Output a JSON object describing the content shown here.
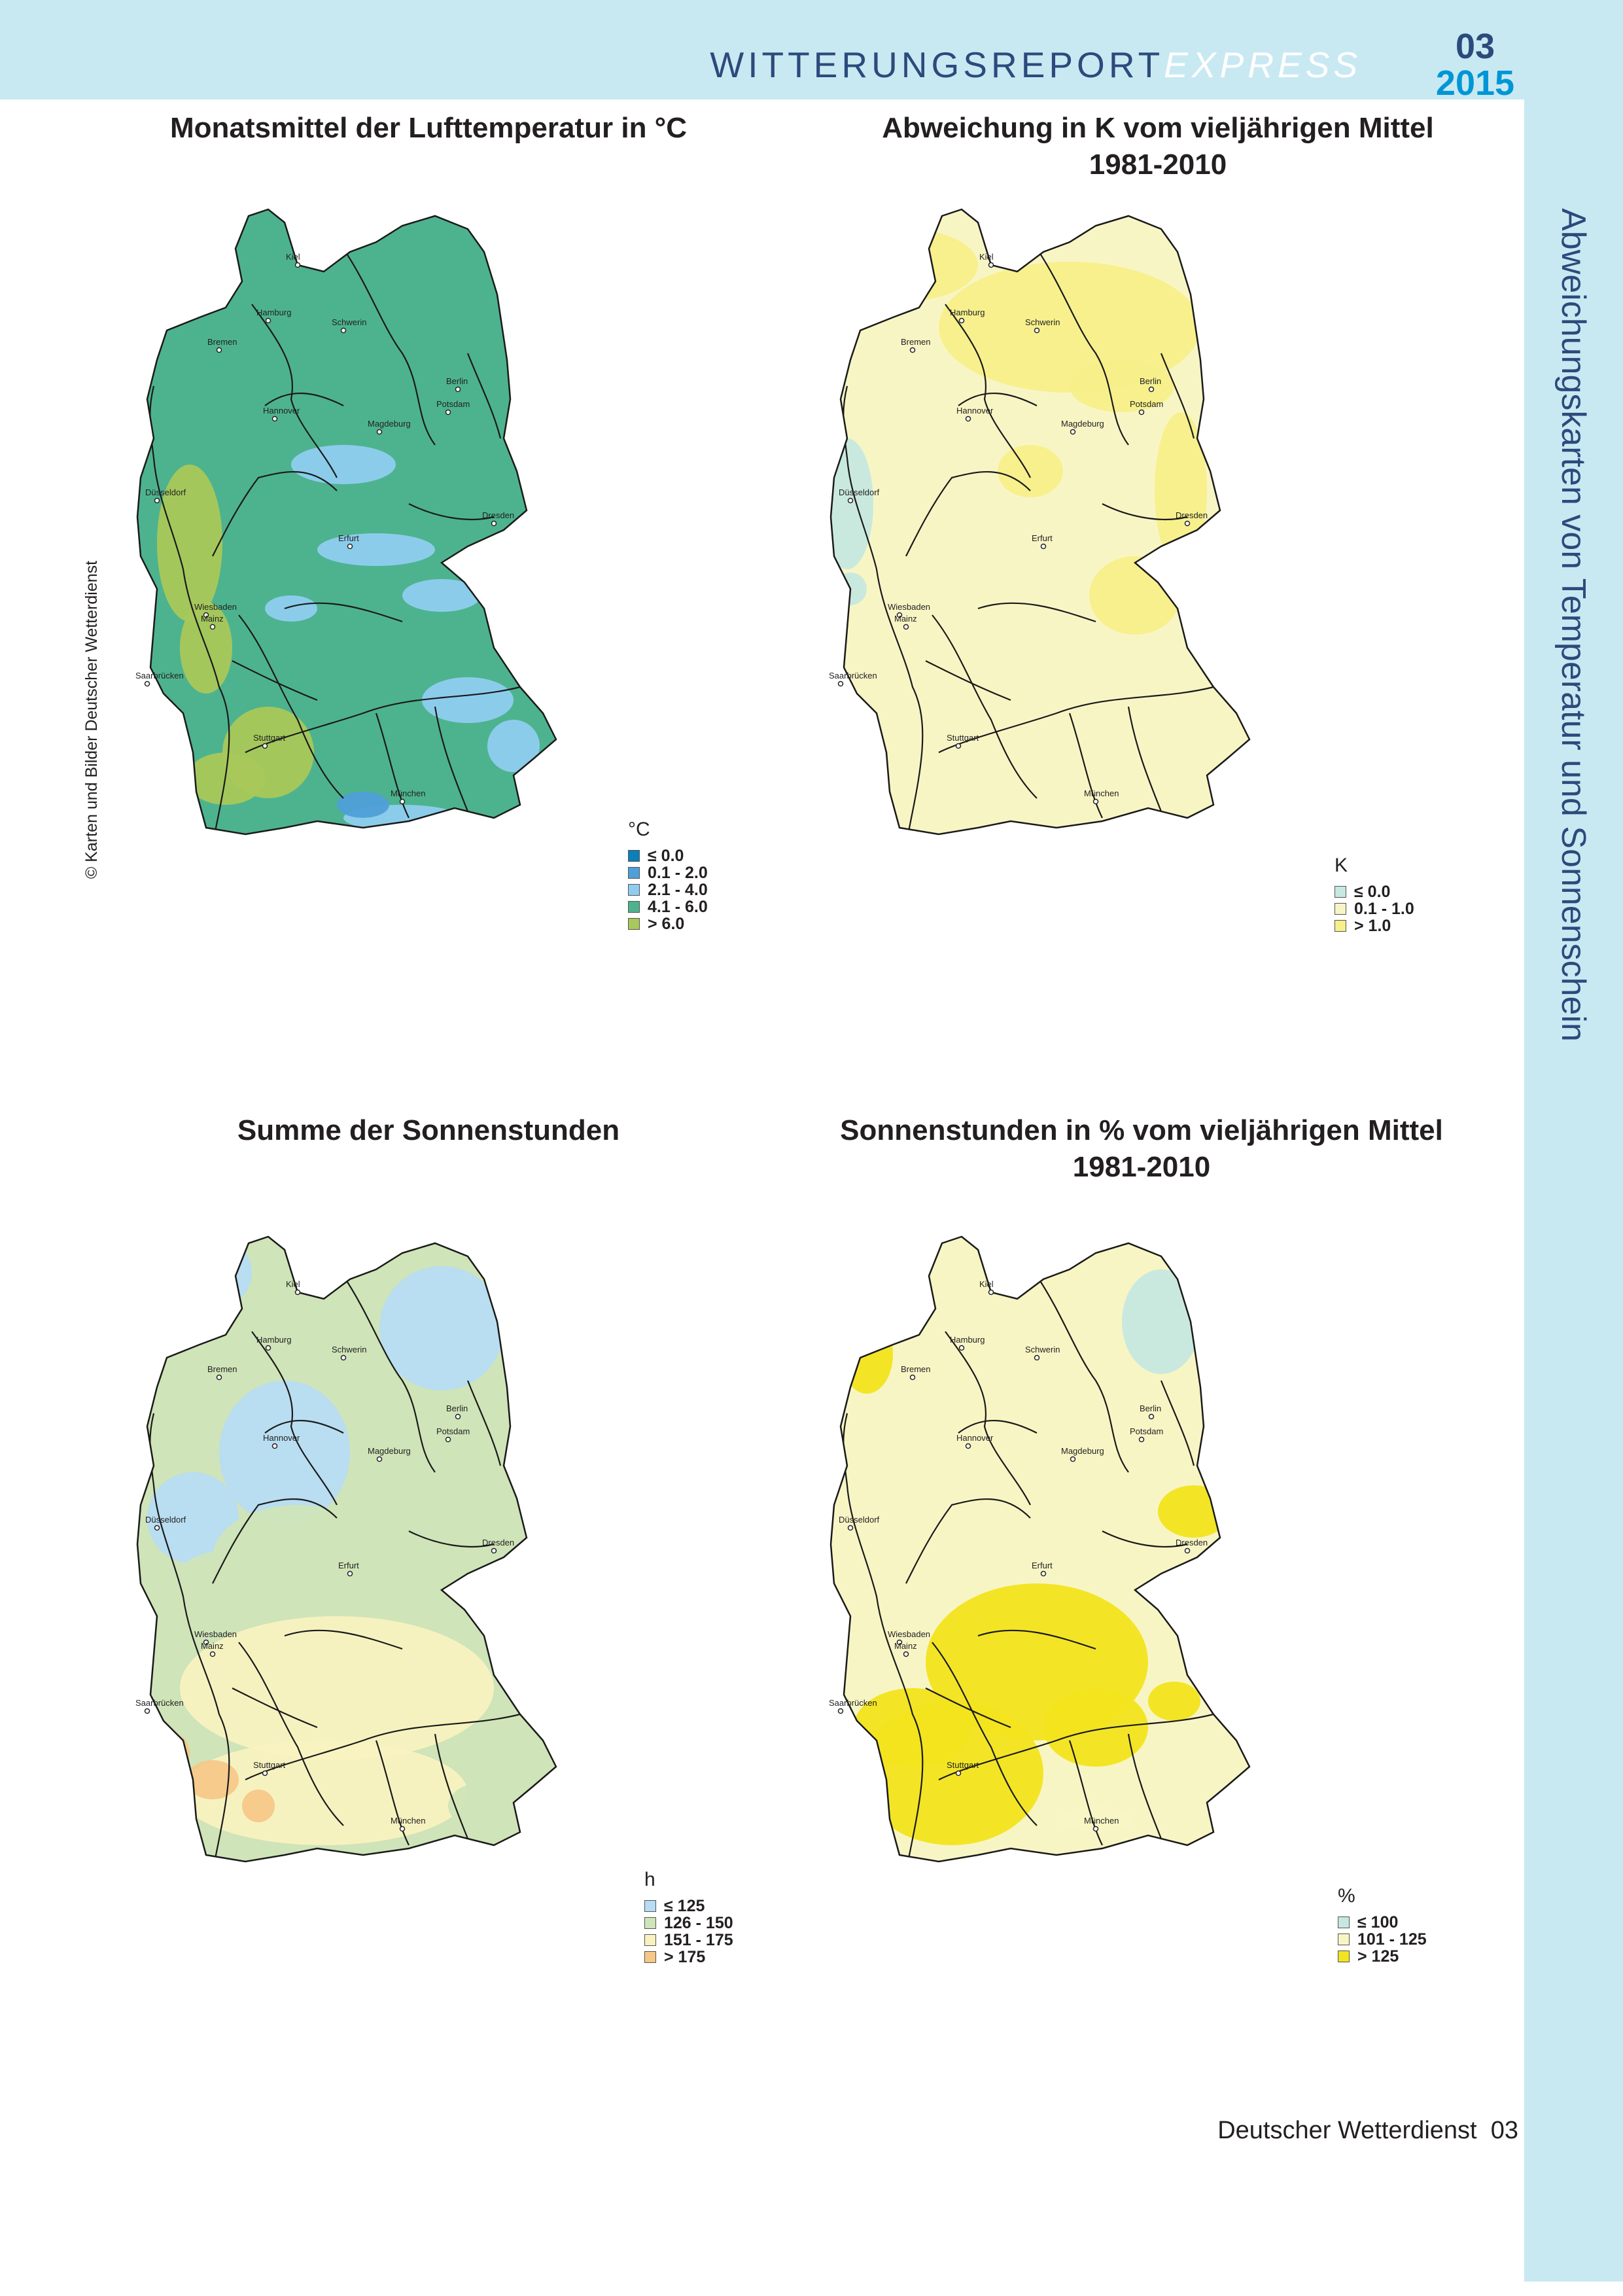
{
  "header": {
    "brand_main": "WITTERUNGSREPORT",
    "brand_accent": "EXPRESS",
    "issue_month": "03",
    "issue_year": "2015"
  },
  "side_title": "Abweichungskarten von Temperatur und Sonnenschein",
  "credit": "© Karten und Bilder Deutscher Wetterdienst",
  "maps": [
    {
      "title": "Monatsmittel der Lufttemperatur in °C",
      "legend_unit": "°C",
      "legend": [
        {
          "label": "≤ 0.0",
          "color": "#0a7fb8"
        },
        {
          "label": "0.1 - 2.0",
          "color": "#4f9fd9"
        },
        {
          "label": "2.1 - 4.0",
          "color": "#8fcdf0"
        },
        {
          "label": "4.1 - 6.0",
          "color": "#4db38e"
        },
        {
          "label": "> 6.0",
          "color": "#a9c85a"
        }
      ]
    },
    {
      "title": "Abweichung in K vom vieljährigen Mittel\n1981-2010",
      "legend_unit": "K",
      "legend": [
        {
          "label": "≤ 0.0",
          "color": "#c6e8e0"
        },
        {
          "label": "0.1 - 1.0",
          "color": "#f8f5c5"
        },
        {
          "label": "> 1.0",
          "color": "#f7ef8a"
        }
      ]
    },
    {
      "title": "Summe der Sonnenstunden",
      "legend_unit": "h",
      "legend": [
        {
          "label": "≤ 125",
          "color": "#b7dcf3"
        },
        {
          "label": "126 - 150",
          "color": "#cfe4b8"
        },
        {
          "label": "151 - 175",
          "color": "#f8f2c0"
        },
        {
          "label": "> 175",
          "color": "#f5c888"
        }
      ]
    },
    {
      "title": "Sonnenstunden in % vom vieljährigen Mittel\n1981-2010",
      "legend_unit": "%",
      "legend": [
        {
          "label": "≤ 100",
          "color": "#c6e8e0"
        },
        {
          "label": "101 - 125",
          "color": "#f8f5c5"
        },
        {
          "label": "> 125",
          "color": "#f2e41e"
        }
      ]
    }
  ],
  "cities": [
    "Kiel",
    "Hamburg",
    "Schwerin",
    "Bremen",
    "Berlin",
    "Potsdam",
    "Hannover",
    "Magdeburg",
    "Düsseldorf",
    "Dresden",
    "Erfurt",
    "Wiesbaden",
    "Mainz",
    "Saarbrücken",
    "Stuttgart",
    "München"
  ],
  "footer": {
    "org": "Deutscher Wetterdienst",
    "page": "03"
  }
}
